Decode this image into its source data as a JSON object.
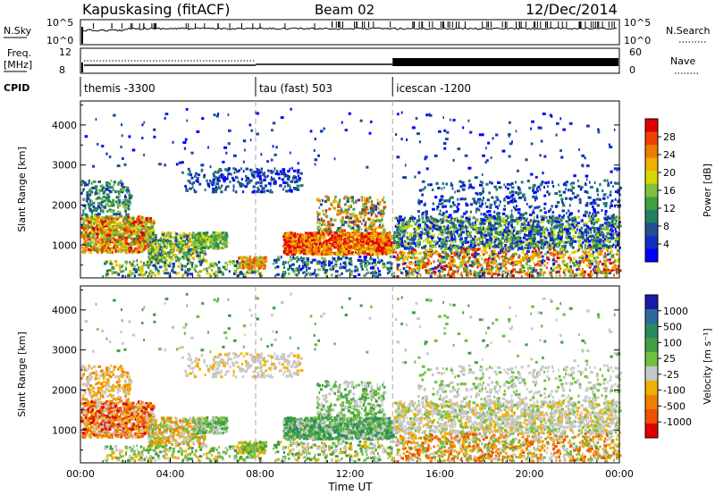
{
  "header": {
    "title": "Kapuskasing (fitACF)",
    "beam": "Beam 02",
    "date": "12/Dec/2014"
  },
  "panels": {
    "nsky_label": "N.Sky",
    "nsearch_label": "N.Search",
    "nave_label": "Nave",
    "freq_label": "Freq.",
    "freq_unit": "[MHz]",
    "cpid_label": "CPID",
    "noise_ticks": [
      "10^5",
      "10^0"
    ],
    "freq_ticks": [
      "12",
      "8"
    ],
    "nave_ticks": [
      "60",
      "0"
    ]
  },
  "chart_data": {
    "type": "heatmap",
    "xlabel": "Time UT",
    "x_ticks": [
      "00:00",
      "04:00",
      "08:00",
      "12:00",
      "16:00",
      "20:00",
      "00:00"
    ],
    "x_range_hours": [
      0,
      24
    ],
    "cpid_segments": [
      {
        "label": "themis -3300",
        "start_hour": 0,
        "end_hour": 7.8
      },
      {
        "label": "tau (fast) 503",
        "start_hour": 7.8,
        "end_hour": 13.9
      },
      {
        "label": "icescan -1200",
        "start_hour": 13.9,
        "end_hour": 24
      }
    ],
    "power_panel": {
      "ylabel": "Slant Range [km]",
      "y_ticks": [
        "4000",
        "3000",
        "2000",
        "1000"
      ],
      "y_range_km": [
        180,
        4600
      ],
      "colorbar_label": "Power [dB]",
      "colorbar_ticks": [
        "28",
        "24",
        "20",
        "16",
        "12",
        "8",
        "4"
      ],
      "colorbar_colors": [
        "#e00000",
        "#f04000",
        "#f07a00",
        "#f0b000",
        "#d8d800",
        "#80c040",
        "#40a040",
        "#208060",
        "#205090",
        "#1030c0",
        "#0000ff"
      ]
    },
    "velocity_panel": {
      "ylabel": "Slant Range [km]",
      "y_ticks": [
        "4000",
        "3000",
        "2000",
        "1000"
      ],
      "y_range_km": [
        180,
        4600
      ],
      "colorbar_label": "Velocity [m s⁻¹]",
      "colorbar_ticks": [
        "1000",
        "500",
        "100",
        "25",
        "-25",
        "-100",
        "-500",
        "-1000"
      ],
      "colorbar_colors": [
        "#1a1aa8",
        "#2a6aa0",
        "#2a8a60",
        "#40a040",
        "#70c040",
        "#c8c8c8",
        "#f0b000",
        "#f08000",
        "#f05000",
        "#e00000"
      ]
    }
  }
}
